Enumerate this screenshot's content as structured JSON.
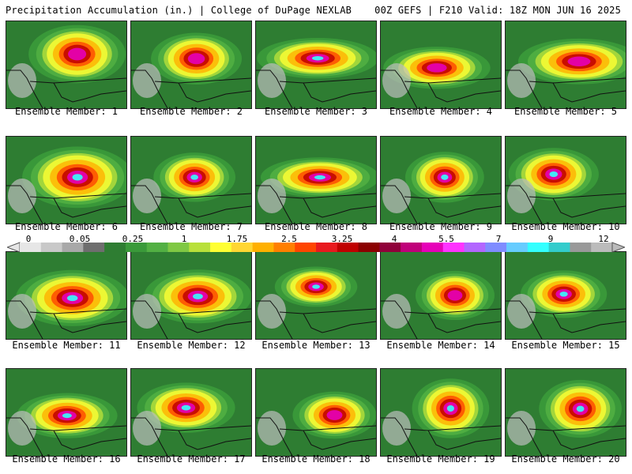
{
  "header": {
    "left": "Precipitation Accumulation (in.) | College of DuPage NEXLAB",
    "right": "00Z GEFS | F210 Valid: 18Z MON JUN 16 2025"
  },
  "colorbar": {
    "ticks": [
      "0",
      "0.05",
      "0.25",
      "1",
      "1.75",
      "2.5",
      "3.25",
      "4",
      "5.5",
      "7",
      "9",
      "12"
    ],
    "colors": [
      "#e6e6e6",
      "#c8c8c8",
      "#a8a8a8",
      "#6e6e6e",
      "#2e7d32",
      "#3a9a3a",
      "#52b043",
      "#7fc843",
      "#b8e03a",
      "#ffff33",
      "#ffd633",
      "#ffb000",
      "#ff7f00",
      "#ff4500",
      "#e8191e",
      "#c00000",
      "#8b0000",
      "#90003a",
      "#c0007a",
      "#e600b8",
      "#ff33ff",
      "#b266ff",
      "#7f8cff",
      "#66ccff",
      "#33ffff",
      "#33cccc",
      "#999999",
      "#bbbbbb"
    ]
  },
  "members": [
    {
      "label": "Ensemble Member: 1"
    },
    {
      "label": "Ensemble Member: 2"
    },
    {
      "label": "Ensemble Member: 3"
    },
    {
      "label": "Ensemble Member: 4"
    },
    {
      "label": "Ensemble Member: 5"
    },
    {
      "label": "Ensemble Member: 6"
    },
    {
      "label": "Ensemble Member: 7"
    },
    {
      "label": "Ensemble Member: 8"
    },
    {
      "label": "Ensemble Member: 9"
    },
    {
      "label": "Ensemble Member: 10"
    },
    {
      "label": "Ensemble Member: 11"
    },
    {
      "label": "Ensemble Member: 12"
    },
    {
      "label": "Ensemble Member: 13"
    },
    {
      "label": "Ensemble Member: 14"
    },
    {
      "label": "Ensemble Member: 15"
    },
    {
      "label": "Ensemble Member: 16"
    },
    {
      "label": "Ensemble Member: 17"
    },
    {
      "label": "Ensemble Member: 18"
    },
    {
      "label": "Ensemble Member: 19"
    },
    {
      "label": "Ensemble Member: 20"
    }
  ]
}
